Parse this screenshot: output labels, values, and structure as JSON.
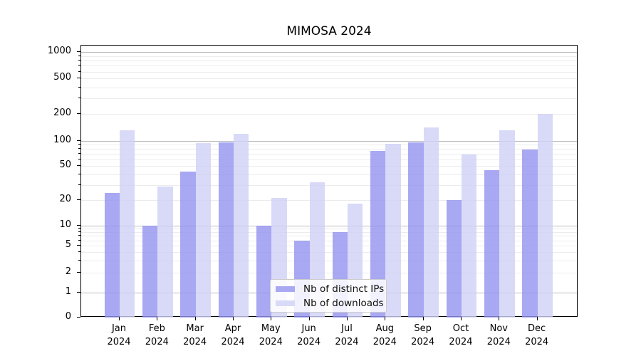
{
  "title": "MIMOSA 2024",
  "colors": {
    "bar_ips_fill": "rgba(146,146,240,0.8)",
    "bar_downloads_fill": "rgba(208,208,246,0.8)",
    "legend_swatch_ips": "#a9a9f3",
    "legend_swatch_downloads": "#d9d9f8",
    "grid_major": "#bbbbbb",
    "grid_minor": "#ececec",
    "axis": "#000000"
  },
  "legend": {
    "items": [
      {
        "label": "Nb of distinct IPs",
        "swatch": "#a9a9f3"
      },
      {
        "label": "Nb of downloads",
        "swatch": "#d9d9f8"
      }
    ]
  },
  "y_axis": {
    "tick_labels": [
      "1000",
      "500",
      "200",
      "100",
      "50",
      "20",
      "10",
      "5",
      "2",
      "1",
      "0"
    ]
  },
  "x_axis": {
    "year": "2024",
    "months": [
      "Jan",
      "Feb",
      "Mar",
      "Apr",
      "May",
      "Jun",
      "Jul",
      "Aug",
      "Sep",
      "Oct",
      "Nov",
      "Dec"
    ]
  },
  "chart_data": {
    "type": "bar",
    "categories": [
      "Jan 2024",
      "Feb 2024",
      "Mar 2024",
      "Apr 2024",
      "May 2024",
      "Jun 2024",
      "Jul 2024",
      "Aug 2024",
      "Sep 2024",
      "Oct 2024",
      "Nov 2024",
      "Dec 2024"
    ],
    "series": [
      {
        "name": "Nb of distinct IPs",
        "values": [
          24,
          10,
          43,
          96,
          10,
          6,
          8,
          75,
          96,
          20,
          45,
          78
        ]
      },
      {
        "name": "Nb of downloads",
        "values": [
          130,
          29,
          94,
          120,
          21,
          32,
          18,
          92,
          140,
          68,
          130,
          200
        ]
      }
    ],
    "title": "MIMOSA 2024",
    "xlabel": "",
    "ylabel": "",
    "yscale": "symlog",
    "ylim": [
      0,
      1000
    ],
    "y_ticks": [
      0,
      1,
      2,
      5,
      10,
      20,
      50,
      100,
      200,
      500,
      1000
    ],
    "grid": true,
    "legend_position": "lower center"
  }
}
